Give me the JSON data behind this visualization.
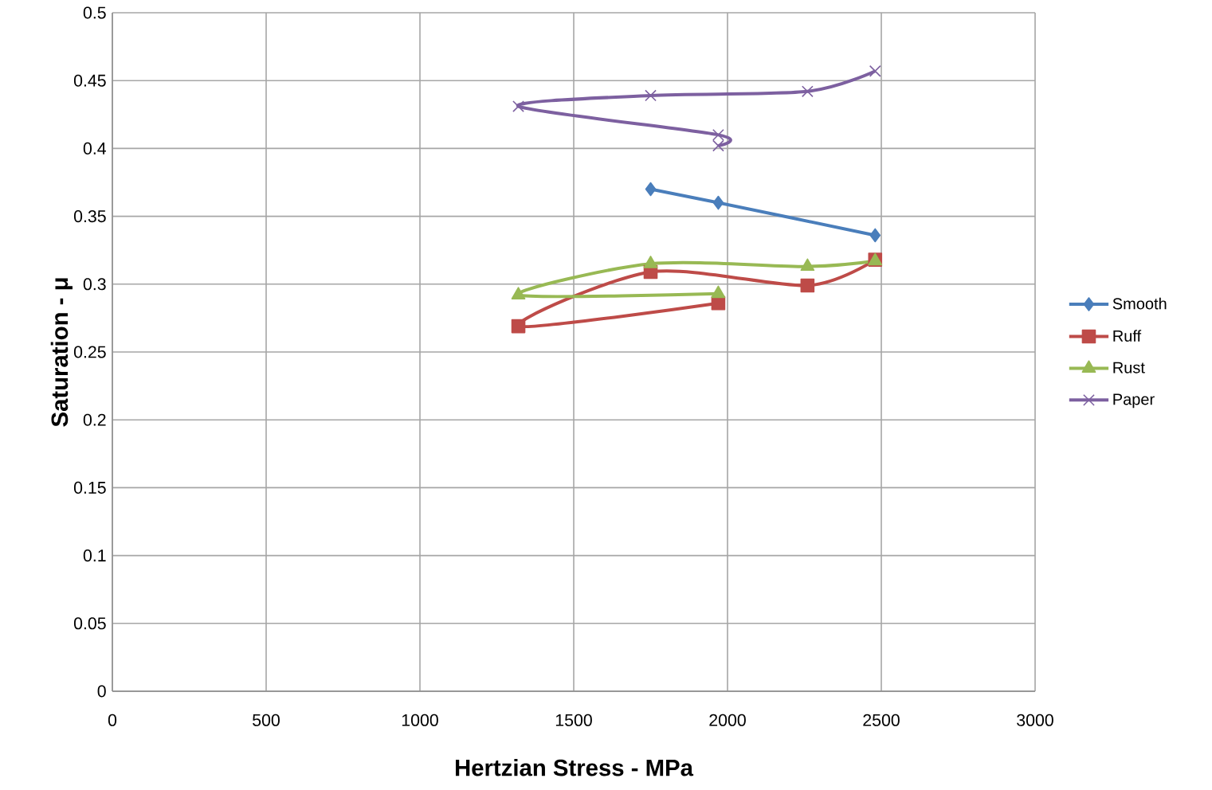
{
  "chart_data": {
    "type": "line",
    "xlabel": "Hertzian Stress - MPa",
    "ylabel": "Saturation - μ",
    "xlim": [
      0,
      3000
    ],
    "xticks": [
      0,
      500,
      1000,
      1500,
      2000,
      2500,
      3000
    ],
    "ylim": [
      0,
      0.5
    ],
    "yticks": [
      0,
      0.05,
      0.1,
      0.15,
      0.2,
      0.25,
      0.3,
      0.35,
      0.4,
      0.45,
      0.5
    ],
    "grid": true,
    "legend": "right",
    "line_style": "solid",
    "series": [
      {
        "name": "Smooth",
        "color": "#4a7ebb",
        "marker": "diamond",
        "x": [
          1750,
          1970,
          2480
        ],
        "values": [
          0.37,
          0.36,
          0.336
        ]
      },
      {
        "name": "Ruff",
        "color": "#be4b48",
        "marker": "square",
        "x": [
          1970,
          1320,
          1750,
          2260,
          2480
        ],
        "values": [
          0.286,
          0.269,
          0.309,
          0.299,
          0.318
        ]
      },
      {
        "name": "Rust",
        "color": "#98b954",
        "marker": "triangle",
        "x": [
          1970,
          1320,
          1750,
          2260,
          2480
        ],
        "values": [
          0.293,
          0.292,
          0.315,
          0.313,
          0.317
        ]
      },
      {
        "name": "Paper",
        "color": "#7d60a0",
        "marker": "cross",
        "x": [
          1970,
          1970,
          1320,
          1750,
          2260,
          2480
        ],
        "values": [
          0.402,
          0.41,
          0.431,
          0.439,
          0.442,
          0.457
        ]
      }
    ]
  }
}
